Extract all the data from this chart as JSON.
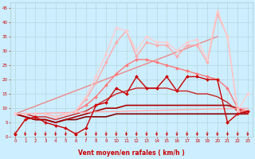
{
  "xlabel": "Vent moyen/en rafales ( km/h )",
  "background_color": "#cceeff",
  "grid_color": "#aacccc",
  "xlim": [
    -0.5,
    23.5
  ],
  "ylim": [
    0,
    47
  ],
  "yticks": [
    0,
    5,
    10,
    15,
    20,
    25,
    30,
    35,
    40,
    45
  ],
  "xticks": [
    0,
    1,
    2,
    3,
    4,
    5,
    6,
    7,
    8,
    9,
    10,
    11,
    12,
    13,
    14,
    15,
    16,
    17,
    18,
    19,
    20,
    21,
    22,
    23
  ],
  "lines": [
    {
      "x": [
        0,
        1,
        2,
        3,
        4,
        5,
        6,
        7,
        8,
        9,
        10,
        11,
        12,
        13,
        14,
        15,
        16,
        17,
        18,
        19,
        20,
        21,
        22,
        23
      ],
      "y": [
        8,
        7,
        6,
        6,
        5,
        6,
        6,
        7,
        7,
        7,
        8,
        8,
        8,
        8,
        8,
        8,
        8,
        8,
        8,
        8,
        8,
        8,
        8,
        8
      ],
      "color": "#880000",
      "lw": 1.2,
      "marker": null,
      "ms": 0,
      "zorder": 2
    },
    {
      "x": [
        0,
        1,
        2,
        3,
        4,
        5,
        6,
        7,
        8,
        9,
        10,
        11,
        12,
        13,
        14,
        15,
        16,
        17,
        18,
        19,
        20,
        21,
        22,
        23
      ],
      "y": [
        8,
        7,
        6,
        6,
        5,
        6,
        7,
        8,
        9,
        10,
        10,
        11,
        11,
        11,
        11,
        11,
        11,
        11,
        11,
        11,
        11,
        11,
        10,
        8
      ],
      "color": "#aa0000",
      "lw": 1.2,
      "marker": null,
      "ms": 0,
      "zorder": 2
    },
    {
      "x": [
        0,
        1,
        2,
        3,
        4,
        5,
        6,
        7,
        8,
        9,
        10,
        11,
        12,
        13,
        14,
        15,
        16,
        17,
        18,
        19,
        20,
        21,
        22,
        23
      ],
      "y": [
        8,
        8,
        7,
        7,
        6,
        7,
        8,
        9,
        11,
        13,
        15,
        16,
        17,
        17,
        17,
        17,
        16,
        16,
        15,
        15,
        14,
        12,
        9,
        8
      ],
      "color": "#cc2222",
      "lw": 1.0,
      "marker": null,
      "ms": 0,
      "zorder": 2
    },
    {
      "x": [
        0,
        1,
        2,
        3,
        4,
        5,
        6,
        7,
        8,
        9,
        10,
        11,
        12,
        13,
        14,
        15,
        16,
        17,
        18,
        19,
        20,
        21,
        22,
        23
      ],
      "y": [
        1,
        6,
        7,
        5,
        4,
        3,
        1,
        3,
        11,
        12,
        17,
        15,
        21,
        17,
        17,
        21,
        16,
        21,
        21,
        20,
        20,
        5,
        8,
        9
      ],
      "color": "#cc0000",
      "lw": 1.0,
      "marker": "D",
      "ms": 2.0,
      "zorder": 5
    },
    {
      "x": [
        0,
        20
      ],
      "y": [
        8,
        35
      ],
      "color": "#ee8888",
      "lw": 1.0,
      "marker": null,
      "ms": 0,
      "zorder": 2
    },
    {
      "x": [
        0,
        1,
        2,
        3,
        4,
        5,
        6,
        7,
        8,
        9,
        10,
        11,
        12,
        13,
        14,
        15,
        16,
        17,
        18,
        19,
        20,
        21,
        22,
        23
      ],
      "y": [
        8,
        8,
        8,
        8,
        7,
        8,
        9,
        11,
        14,
        18,
        22,
        25,
        27,
        27,
        26,
        25,
        24,
        23,
        22,
        21,
        20,
        17,
        10,
        9
      ],
      "color": "#ff7777",
      "lw": 1.0,
      "marker": "D",
      "ms": 2.0,
      "zorder": 4
    },
    {
      "x": [
        0,
        1,
        2,
        3,
        4,
        5,
        6,
        7,
        8,
        9,
        10,
        11,
        12,
        13,
        14,
        15,
        16,
        17,
        18,
        19,
        20,
        21,
        22,
        23
      ],
      "y": [
        8,
        8,
        8,
        8,
        7,
        8,
        9,
        13,
        19,
        26,
        33,
        37,
        28,
        33,
        32,
        32,
        28,
        32,
        32,
        26,
        43,
        35,
        9,
        9
      ],
      "color": "#ffaaaa",
      "lw": 1.0,
      "marker": "D",
      "ms": 2.0,
      "zorder": 4
    },
    {
      "x": [
        0,
        1,
        2,
        3,
        4,
        5,
        6,
        7,
        8,
        9,
        10,
        11,
        12,
        13,
        14,
        15,
        16,
        17,
        18,
        19,
        20,
        21,
        22,
        23
      ],
      "y": [
        8,
        8,
        8,
        8,
        7,
        8,
        9,
        14,
        21,
        29,
        38,
        37,
        30,
        35,
        33,
        33,
        30,
        33,
        34,
        27,
        44,
        35,
        9,
        15
      ],
      "color": "#ffcccc",
      "lw": 1.0,
      "marker": "D",
      "ms": 2.0,
      "zorder": 4
    },
    {
      "x": [
        0,
        23
      ],
      "y": [
        8,
        10
      ],
      "color": "#ffaaaa",
      "lw": 1.0,
      "marker": null,
      "ms": 0,
      "zorder": 2
    }
  ],
  "arrows_x": [
    0,
    1,
    2,
    3,
    4,
    5,
    6,
    7,
    8,
    9,
    10,
    11,
    12,
    13,
    14,
    15,
    16,
    17,
    18,
    19,
    20,
    21,
    22,
    23
  ]
}
